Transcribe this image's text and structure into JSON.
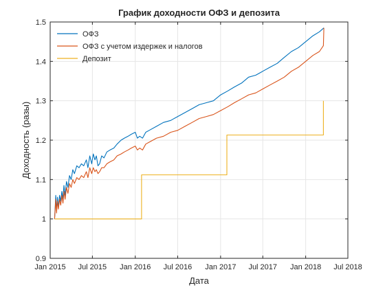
{
  "chart_data": {
    "type": "line",
    "title": "График доходности ОФЗ и депозита",
    "xlabel": "Дата",
    "ylabel": "Доходность (разы)",
    "grid": true,
    "legend_position": "top-left",
    "xlim": [
      "2015-01-01",
      "2018-07-01"
    ],
    "ylim": [
      0.9,
      1.5
    ],
    "x_ticks": [
      {
        "date": "2015-01-01",
        "label": "Jan 2015"
      },
      {
        "date": "2015-07-01",
        "label": "Jul 2015"
      },
      {
        "date": "2016-01-01",
        "label": "Jan 2016"
      },
      {
        "date": "2016-07-01",
        "label": "Jul 2016"
      },
      {
        "date": "2017-01-01",
        "label": "Jan 2017"
      },
      {
        "date": "2017-07-01",
        "label": "Jul 2017"
      },
      {
        "date": "2018-01-01",
        "label": "Jan 2018"
      },
      {
        "date": "2018-07-01",
        "label": "Jul 2018"
      }
    ],
    "y_ticks": [
      {
        "value": 0.9,
        "label": "0.9"
      },
      {
        "value": 1.0,
        "label": "1"
      },
      {
        "value": 1.1,
        "label": "1.1"
      },
      {
        "value": 1.2,
        "label": "1.2"
      },
      {
        "value": 1.3,
        "label": "1.3"
      },
      {
        "value": 1.4,
        "label": "1.4"
      },
      {
        "value": 1.5,
        "label": "1.5"
      }
    ],
    "series": [
      {
        "name": "ОФЗ",
        "color": "#0072bd",
        "points": [
          [
            "2015-01-20",
            1.0
          ],
          [
            "2015-01-25",
            1.06
          ],
          [
            "2015-01-28",
            1.02
          ],
          [
            "2015-02-01",
            1.055
          ],
          [
            "2015-02-05",
            1.03
          ],
          [
            "2015-02-10",
            1.06
          ],
          [
            "2015-02-15",
            1.045
          ],
          [
            "2015-02-20",
            1.07
          ],
          [
            "2015-02-25",
            1.05
          ],
          [
            "2015-03-01",
            1.085
          ],
          [
            "2015-03-06",
            1.06
          ],
          [
            "2015-03-12",
            1.095
          ],
          [
            "2015-03-18",
            1.08
          ],
          [
            "2015-03-25",
            1.11
          ],
          [
            "2015-04-01",
            1.1
          ],
          [
            "2015-04-08",
            1.125
          ],
          [
            "2015-04-15",
            1.115
          ],
          [
            "2015-04-25",
            1.135
          ],
          [
            "2015-05-05",
            1.13
          ],
          [
            "2015-05-15",
            1.14
          ],
          [
            "2015-05-25",
            1.135
          ],
          [
            "2015-06-05",
            1.15
          ],
          [
            "2015-06-12",
            1.13
          ],
          [
            "2015-06-20",
            1.16
          ],
          [
            "2015-06-28",
            1.14
          ],
          [
            "2015-07-05",
            1.165
          ],
          [
            "2015-07-12",
            1.15
          ],
          [
            "2015-07-18",
            1.16
          ],
          [
            "2015-07-25",
            1.135
          ],
          [
            "2015-08-01",
            1.14
          ],
          [
            "2015-08-10",
            1.16
          ],
          [
            "2015-08-20",
            1.155
          ],
          [
            "2015-09-01",
            1.17
          ],
          [
            "2015-09-15",
            1.175
          ],
          [
            "2015-10-01",
            1.18
          ],
          [
            "2015-10-15",
            1.19
          ],
          [
            "2015-11-01",
            1.2
          ],
          [
            "2015-11-15",
            1.205
          ],
          [
            "2015-12-01",
            1.21
          ],
          [
            "2015-12-15",
            1.215
          ],
          [
            "2016-01-01",
            1.22
          ],
          [
            "2016-01-10",
            1.205
          ],
          [
            "2016-01-20",
            1.21
          ],
          [
            "2016-02-01",
            1.205
          ],
          [
            "2016-02-15",
            1.22
          ],
          [
            "2016-03-01",
            1.225
          ],
          [
            "2016-04-01",
            1.235
          ],
          [
            "2016-05-01",
            1.245
          ],
          [
            "2016-06-01",
            1.25
          ],
          [
            "2016-07-01",
            1.26
          ],
          [
            "2016-08-01",
            1.27
          ],
          [
            "2016-09-01",
            1.28
          ],
          [
            "2016-10-01",
            1.29
          ],
          [
            "2016-11-01",
            1.295
          ],
          [
            "2016-12-01",
            1.3
          ],
          [
            "2017-01-01",
            1.315
          ],
          [
            "2017-02-01",
            1.325
          ],
          [
            "2017-03-01",
            1.335
          ],
          [
            "2017-04-01",
            1.345
          ],
          [
            "2017-05-01",
            1.36
          ],
          [
            "2017-06-01",
            1.365
          ],
          [
            "2017-07-01",
            1.375
          ],
          [
            "2017-08-01",
            1.385
          ],
          [
            "2017-09-01",
            1.395
          ],
          [
            "2017-10-01",
            1.41
          ],
          [
            "2017-11-01",
            1.425
          ],
          [
            "2017-12-01",
            1.435
          ],
          [
            "2018-01-01",
            1.45
          ],
          [
            "2018-02-01",
            1.465
          ],
          [
            "2018-03-01",
            1.475
          ],
          [
            "2018-03-20",
            1.485
          ]
        ]
      },
      {
        "name": "ОФЗ с учетом издержек и налогов",
        "color": "#d95319",
        "points": [
          [
            "2015-01-20",
            1.0
          ],
          [
            "2015-01-25",
            1.05
          ],
          [
            "2015-01-28",
            1.015
          ],
          [
            "2015-02-01",
            1.045
          ],
          [
            "2015-02-05",
            1.025
          ],
          [
            "2015-02-10",
            1.05
          ],
          [
            "2015-02-15",
            1.035
          ],
          [
            "2015-02-20",
            1.06
          ],
          [
            "2015-02-25",
            1.04
          ],
          [
            "2015-03-01",
            1.07
          ],
          [
            "2015-03-06",
            1.05
          ],
          [
            "2015-03-12",
            1.08
          ],
          [
            "2015-03-18",
            1.065
          ],
          [
            "2015-03-25",
            1.09
          ],
          [
            "2015-04-01",
            1.08
          ],
          [
            "2015-04-08",
            1.1
          ],
          [
            "2015-04-15",
            1.09
          ],
          [
            "2015-04-25",
            1.105
          ],
          [
            "2015-05-05",
            1.1
          ],
          [
            "2015-05-15",
            1.11
          ],
          [
            "2015-05-25",
            1.105
          ],
          [
            "2015-06-05",
            1.12
          ],
          [
            "2015-06-12",
            1.105
          ],
          [
            "2015-06-20",
            1.13
          ],
          [
            "2015-06-28",
            1.115
          ],
          [
            "2015-07-05",
            1.13
          ],
          [
            "2015-07-12",
            1.12
          ],
          [
            "2015-07-18",
            1.125
          ],
          [
            "2015-07-25",
            1.115
          ],
          [
            "2015-08-01",
            1.12
          ],
          [
            "2015-08-10",
            1.13
          ],
          [
            "2015-08-20",
            1.13
          ],
          [
            "2015-09-01",
            1.14
          ],
          [
            "2015-09-15",
            1.145
          ],
          [
            "2015-10-01",
            1.15
          ],
          [
            "2015-10-15",
            1.16
          ],
          [
            "2015-11-01",
            1.165
          ],
          [
            "2015-11-15",
            1.17
          ],
          [
            "2015-12-01",
            1.175
          ],
          [
            "2015-12-15",
            1.18
          ],
          [
            "2016-01-01",
            1.185
          ],
          [
            "2016-01-10",
            1.175
          ],
          [
            "2016-01-20",
            1.18
          ],
          [
            "2016-02-01",
            1.175
          ],
          [
            "2016-02-15",
            1.19
          ],
          [
            "2016-03-01",
            1.195
          ],
          [
            "2016-04-01",
            1.205
          ],
          [
            "2016-05-01",
            1.21
          ],
          [
            "2016-06-01",
            1.22
          ],
          [
            "2016-07-01",
            1.225
          ],
          [
            "2016-08-01",
            1.235
          ],
          [
            "2016-09-01",
            1.245
          ],
          [
            "2016-10-01",
            1.255
          ],
          [
            "2016-11-01",
            1.26
          ],
          [
            "2016-12-01",
            1.265
          ],
          [
            "2017-01-01",
            1.275
          ],
          [
            "2017-02-01",
            1.285
          ],
          [
            "2017-03-01",
            1.295
          ],
          [
            "2017-04-01",
            1.305
          ],
          [
            "2017-05-01",
            1.315
          ],
          [
            "2017-06-01",
            1.32
          ],
          [
            "2017-07-01",
            1.33
          ],
          [
            "2017-08-01",
            1.34
          ],
          [
            "2017-09-01",
            1.35
          ],
          [
            "2017-10-01",
            1.36
          ],
          [
            "2017-11-01",
            1.375
          ],
          [
            "2017-12-01",
            1.385
          ],
          [
            "2018-01-01",
            1.4
          ],
          [
            "2018-02-01",
            1.415
          ],
          [
            "2018-03-01",
            1.425
          ],
          [
            "2018-03-18",
            1.44
          ],
          [
            "2018-03-20",
            1.485
          ]
        ]
      },
      {
        "name": "Депозит",
        "color": "#edb120",
        "points": [
          [
            "2015-01-20",
            1.0
          ],
          [
            "2016-01-28",
            1.0
          ],
          [
            "2016-01-28",
            1.112
          ],
          [
            "2017-01-28",
            1.112
          ],
          [
            "2017-01-28",
            1.213
          ],
          [
            "2018-03-18",
            1.213
          ],
          [
            "2018-03-18",
            1.3
          ]
        ]
      }
    ]
  }
}
